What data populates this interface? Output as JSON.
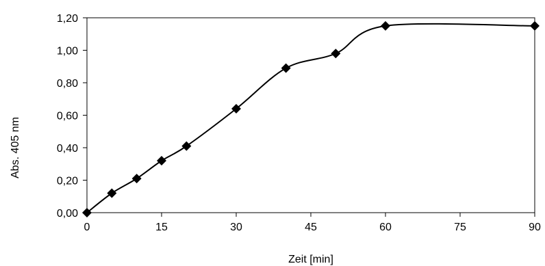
{
  "chart_data": {
    "type": "line",
    "title": "",
    "xlabel": "Zeit [min]",
    "ylabel": "Abs. 405 nm",
    "x_tick_positions": [
      0,
      15,
      30,
      45,
      60,
      75,
      90
    ],
    "x_tick_labels": [
      "0",
      "15",
      "30",
      "45",
      "60",
      "75",
      "90"
    ],
    "y_tick_values": [
      0,
      0.2,
      0.4,
      0.6,
      0.8,
      1.0,
      1.2
    ],
    "y_tick_labels": [
      "0,00",
      "0,20",
      "0,40",
      "0,60",
      "0,80",
      "1,00",
      "1,20"
    ],
    "xlim": [
      0,
      90
    ],
    "ylim": [
      0,
      1.2
    ],
    "grid": false,
    "legend": "none",
    "series": [
      {
        "x": [
          0,
          5,
          10,
          15,
          20,
          30,
          40,
          50,
          60,
          90
        ],
        "y": [
          0.0,
          0.12,
          0.21,
          0.32,
          0.41,
          0.64,
          0.89,
          0.98,
          1.15,
          1.15
        ],
        "marker": "diamond",
        "line": "smooth",
        "color": "#000000"
      }
    ]
  }
}
